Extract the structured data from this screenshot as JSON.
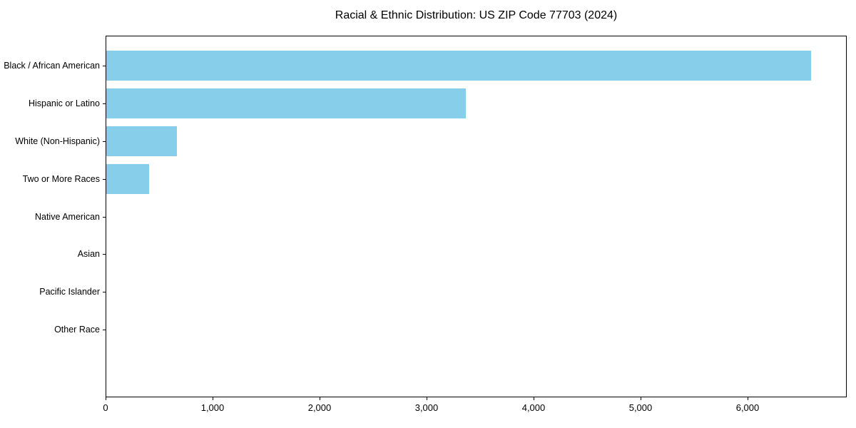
{
  "chart_data": {
    "type": "bar",
    "orientation": "horizontal",
    "title": "Racial & Ethnic Distribution: US ZIP Code 77703 (2024)",
    "categories": [
      "Black / African American",
      "Hispanic or Latino",
      "White (Non-Hispanic)",
      "Two or More Races",
      "Native American",
      "Asian",
      "Pacific Islander",
      "Other Race"
    ],
    "values": [
      6590,
      3360,
      660,
      400,
      0,
      0,
      0,
      0
    ],
    "xlabel": "",
    "ylabel": "",
    "xlim": [
      0,
      6927
    ],
    "xticks": [
      0,
      1000,
      2000,
      3000,
      4000,
      5000,
      6000
    ],
    "xtick_labels": [
      "0",
      "1,000",
      "2,000",
      "3,000",
      "4,000",
      "5,000",
      "6,000"
    ],
    "grid": false,
    "legend": false,
    "bar_color": "#87CEEB",
    "text_color": "#000000",
    "axis_color": "#000000",
    "background_color": "#ffffff"
  }
}
